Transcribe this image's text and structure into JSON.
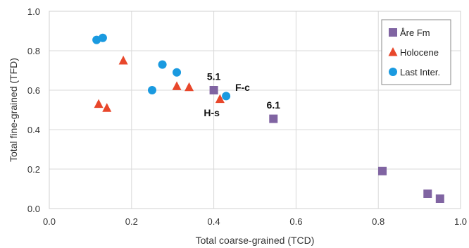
{
  "chart_data": {
    "type": "scatter",
    "xlabel": "Total coarse-grained (TCD)",
    "ylabel": "Total fine-grained (TFD)",
    "xlim": [
      0,
      1
    ],
    "ylim": [
      0,
      1
    ],
    "x_ticks": [
      "0.0",
      "0.2",
      "0.4",
      "0.6",
      "0.8",
      "1.0"
    ],
    "y_ticks": [
      "0.0",
      "0.2",
      "0.4",
      "0.6",
      "0.8",
      "1.0"
    ],
    "grid": true,
    "legend_position": "top-right",
    "series": [
      {
        "name": "Åre Fm",
        "marker": "square",
        "color": "#8064a2",
        "x": [
          0.4,
          0.545,
          0.81,
          0.92,
          0.95
        ],
        "y": [
          0.6,
          0.455,
          0.19,
          0.075,
          0.05
        ]
      },
      {
        "name": "Holocene",
        "marker": "triangle",
        "color": "#e8472b",
        "x": [
          0.12,
          0.14,
          0.18,
          0.31,
          0.34,
          0.415
        ],
        "y": [
          0.53,
          0.51,
          0.75,
          0.62,
          0.615,
          0.555
        ]
      },
      {
        "name": "Last Inter.",
        "marker": "circle",
        "color": "#1a9ae0",
        "x": [
          0.115,
          0.13,
          0.25,
          0.275,
          0.31,
          0.43
        ],
        "y": [
          0.855,
          0.865,
          0.6,
          0.73,
          0.69,
          0.57
        ]
      }
    ],
    "annotations": [
      {
        "text": "5.1",
        "x": 0.4,
        "y": 0.67
      },
      {
        "text": "F-c",
        "x": 0.47,
        "y": 0.615
      },
      {
        "text": "H-s",
        "x": 0.395,
        "y": 0.485
      },
      {
        "text": "6.1",
        "x": 0.545,
        "y": 0.525
      }
    ]
  }
}
